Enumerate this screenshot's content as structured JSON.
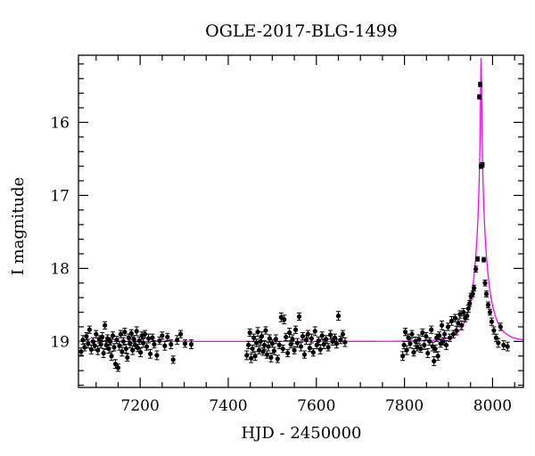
{
  "chart_data": {
    "type": "scatter",
    "title": "OGLE-2017-BLG-1499",
    "xlabel": "HJD - 2450000",
    "ylabel": "I magnitude",
    "xlim": [
      7060,
      8070
    ],
    "ylim": [
      19.63,
      15.08
    ],
    "y_inverted": true,
    "x_ticks": [
      7200,
      7400,
      7600,
      7800,
      8000
    ],
    "y_ticks": [
      16,
      17,
      18,
      19
    ],
    "grid": false,
    "marker_color": "#000000",
    "model_color": "#ff00ff",
    "model": {
      "type": "point-lens",
      "baseline_mag": 19.0,
      "t0": 7974,
      "u0": 0.028,
      "tE": 34
    },
    "series": [
      {
        "points": [
          [
            7066,
            19.14,
            0.05
          ],
          [
            7070,
            18.98,
            0.06
          ],
          [
            7074,
            19.08,
            0.05
          ],
          [
            7078,
            18.93,
            0.05
          ],
          [
            7082,
            19.03,
            0.06
          ],
          [
            7085,
            18.84,
            0.05
          ],
          [
            7089,
            19.11,
            0.06
          ],
          [
            7093,
            19.0,
            0.05
          ],
          [
            7097,
            19.06,
            0.06
          ],
          [
            7100,
            18.9,
            0.05
          ],
          [
            7104,
            19.12,
            0.06
          ],
          [
            7107,
            18.97,
            0.05
          ],
          [
            7111,
            19.04,
            0.05
          ],
          [
            7114,
            18.94,
            0.06
          ],
          [
            7117,
            19.16,
            0.06
          ],
          [
            7120,
            18.78,
            0.05
          ],
          [
            7123,
            19.05,
            0.06
          ],
          [
            7126,
            18.96,
            0.05
          ],
          [
            7129,
            19.1,
            0.06
          ],
          [
            7132,
            19.0,
            0.05
          ],
          [
            7135,
            19.2,
            0.06
          ],
          [
            7138,
            18.92,
            0.05
          ],
          [
            7141,
            19.08,
            0.05
          ],
          [
            7144,
            19.31,
            0.06
          ],
          [
            7147,
            18.98,
            0.05
          ],
          [
            7150,
            19.36,
            0.05
          ],
          [
            7153,
            19.06,
            0.06
          ],
          [
            7156,
            18.9,
            0.05
          ],
          [
            7159,
            19.14,
            0.06
          ],
          [
            7162,
            19.0,
            0.05
          ],
          [
            7165,
            18.87,
            0.05
          ],
          [
            7168,
            19.1,
            0.06
          ],
          [
            7171,
            19.22,
            0.05
          ],
          [
            7174,
            18.95,
            0.05
          ],
          [
            7177,
            19.03,
            0.06
          ],
          [
            7180,
            18.89,
            0.05
          ],
          [
            7183,
            19.12,
            0.06
          ],
          [
            7186,
            18.97,
            0.05
          ],
          [
            7189,
            19.05,
            0.05
          ],
          [
            7192,
            18.86,
            0.06
          ],
          [
            7195,
            19.09,
            0.05
          ],
          [
            7198,
            18.99,
            0.05
          ],
          [
            7201,
            19.15,
            0.06
          ],
          [
            7204,
            18.92,
            0.05
          ],
          [
            7207,
            19.02,
            0.06
          ],
          [
            7211,
            18.9,
            0.05
          ],
          [
            7215,
            19.07,
            0.05
          ],
          [
            7219,
            18.96,
            0.06
          ],
          [
            7223,
            19.17,
            0.06
          ],
          [
            7228,
            18.95,
            0.05
          ],
          [
            7232,
            19.04,
            0.05
          ],
          [
            7238,
            19.19,
            0.06
          ],
          [
            7244,
            18.99,
            0.05
          ],
          [
            7250,
            18.92,
            0.05
          ],
          [
            7256,
            19.06,
            0.06
          ],
          [
            7262,
            18.94,
            0.05
          ],
          [
            7270,
            19.04,
            0.06
          ],
          [
            7275,
            19.25,
            0.05
          ],
          [
            7284,
            18.98,
            0.06
          ],
          [
            7292,
            18.9,
            0.05
          ],
          [
            7302,
            19.03,
            0.05
          ],
          [
            7316,
            19.04,
            0.06
          ],
          [
            7442,
            19.19,
            0.06
          ],
          [
            7446,
            19.05,
            0.05
          ],
          [
            7449,
            18.88,
            0.05
          ],
          [
            7452,
            19.23,
            0.06
          ],
          [
            7455,
            19.1,
            0.05
          ],
          [
            7458,
            18.95,
            0.05
          ],
          [
            7461,
            19.2,
            0.06
          ],
          [
            7464,
            19.02,
            0.05
          ],
          [
            7467,
            18.87,
            0.06
          ],
          [
            7470,
            19.12,
            0.05
          ],
          [
            7473,
            19.0,
            0.05
          ],
          [
            7476,
            18.93,
            0.06
          ],
          [
            7479,
            19.14,
            0.05
          ],
          [
            7482,
            19.05,
            0.06
          ],
          [
            7485,
            18.85,
            0.05
          ],
          [
            7488,
            19.18,
            0.05
          ],
          [
            7491,
            19.07,
            0.06
          ],
          [
            7494,
            18.96,
            0.05
          ],
          [
            7497,
            19.22,
            0.06
          ],
          [
            7500,
            19.03,
            0.05
          ],
          [
            7504,
            19.13,
            0.05
          ],
          [
            7508,
            18.97,
            0.06
          ],
          [
            7512,
            19.24,
            0.05
          ],
          [
            7516,
            19.05,
            0.05
          ],
          [
            7520,
            18.67,
            0.06
          ],
          [
            7524,
            19.1,
            0.05
          ],
          [
            7527,
            18.7,
            0.06
          ],
          [
            7531,
            18.94,
            0.05
          ],
          [
            7535,
            19.16,
            0.05
          ],
          [
            7539,
            18.88,
            0.06
          ],
          [
            7542,
            19.04,
            0.05
          ],
          [
            7546,
            18.97,
            0.06
          ],
          [
            7550,
            19.12,
            0.05
          ],
          [
            7553,
            18.84,
            0.05
          ],
          [
            7557,
            19.02,
            0.06
          ],
          [
            7561,
            18.66,
            0.05
          ],
          [
            7565,
            19.07,
            0.06
          ],
          [
            7569,
            18.93,
            0.05
          ],
          [
            7573,
            19.18,
            0.05
          ],
          [
            7577,
            18.98,
            0.06
          ],
          [
            7581,
            18.9,
            0.05
          ],
          [
            7585,
            19.09,
            0.05
          ],
          [
            7589,
            18.96,
            0.06
          ],
          [
            7593,
            19.15,
            0.05
          ],
          [
            7597,
            18.86,
            0.06
          ],
          [
            7601,
            19.05,
            0.05
          ],
          [
            7605,
            18.99,
            0.05
          ],
          [
            7609,
            19.11,
            0.06
          ],
          [
            7613,
            18.92,
            0.05
          ],
          [
            7617,
            19.04,
            0.06
          ],
          [
            7622,
            18.97,
            0.05
          ],
          [
            7627,
            19.08,
            0.05
          ],
          [
            7632,
            18.91,
            0.06
          ],
          [
            7637,
            19.0,
            0.05
          ],
          [
            7642,
            18.95,
            0.05
          ],
          [
            7646,
            19.03,
            0.06
          ],
          [
            7650,
            18.65,
            0.06
          ],
          [
            7655,
            18.98,
            0.05
          ],
          [
            7660,
            18.9,
            0.05
          ],
          [
            7665,
            19.01,
            0.06
          ],
          [
            7796,
            19.2,
            0.06
          ],
          [
            7799,
            19.05,
            0.05
          ],
          [
            7802,
            18.87,
            0.05
          ],
          [
            7805,
            19.12,
            0.06
          ],
          [
            7809,
            18.95,
            0.05
          ],
          [
            7813,
            19.03,
            0.06
          ],
          [
            7817,
            18.9,
            0.05
          ],
          [
            7821,
            19.15,
            0.05
          ],
          [
            7825,
            19.0,
            0.06
          ],
          [
            7829,
            19.08,
            0.05
          ],
          [
            7833,
            18.97,
            0.06
          ],
          [
            7837,
            19.1,
            0.05
          ],
          [
            7841,
            18.88,
            0.05
          ],
          [
            7845,
            19.05,
            0.06
          ],
          [
            7849,
            18.93,
            0.05
          ],
          [
            7853,
            19.16,
            0.06
          ],
          [
            7857,
            19.0,
            0.05
          ],
          [
            7861,
            18.84,
            0.05
          ],
          [
            7864,
            19.07,
            0.06
          ],
          [
            7867,
            19.27,
            0.06
          ],
          [
            7870,
            19.1,
            0.05
          ],
          [
            7873,
            18.95,
            0.05
          ],
          [
            7876,
            19.2,
            0.06
          ],
          [
            7879,
            18.92,
            0.05
          ],
          [
            7882,
            19.03,
            0.05
          ],
          [
            7885,
            18.78,
            0.06
          ],
          [
            7888,
            19.0,
            0.05
          ],
          [
            7891,
            18.9,
            0.05
          ],
          [
            7895,
            19.05,
            0.06
          ],
          [
            7899,
            18.8,
            0.05
          ],
          [
            7903,
            18.95,
            0.05
          ],
          [
            7907,
            18.72,
            0.06
          ],
          [
            7911,
            18.9,
            0.05
          ],
          [
            7915,
            18.68,
            0.05
          ],
          [
            7918,
            18.85,
            0.06
          ],
          [
            7922,
            18.75,
            0.05
          ],
          [
            7926,
            18.63,
            0.05
          ],
          [
            7930,
            18.78,
            0.06
          ],
          [
            7934,
            18.6,
            0.05
          ],
          [
            7938,
            18.68,
            0.05
          ],
          [
            7942,
            18.65,
            0.05
          ],
          [
            7945,
            18.55,
            0.05
          ],
          [
            7948,
            18.48,
            0.04
          ],
          [
            7951,
            18.38,
            0.04
          ],
          [
            7955,
            18.35,
            0.04
          ],
          [
            7958,
            18.27,
            0.04
          ],
          [
            7962,
            18.01,
            0.04
          ],
          [
            7966,
            17.87,
            0.03
          ],
          [
            7970,
            15.65,
            0.03
          ],
          [
            7972,
            15.48,
            0.03
          ],
          [
            7974,
            16.6,
            0.03
          ],
          [
            7977,
            16.58,
            0.03
          ],
          [
            7980,
            17.88,
            0.03
          ],
          [
            7983,
            18.2,
            0.04
          ],
          [
            7986,
            18.35,
            0.04
          ],
          [
            7990,
            18.5,
            0.04
          ],
          [
            7994,
            18.6,
            0.04
          ],
          [
            7998,
            18.73,
            0.05
          ],
          [
            8003,
            18.85,
            0.05
          ],
          [
            8008,
            18.95,
            0.05
          ],
          [
            8013,
            19.02,
            0.06
          ],
          [
            8018,
            18.8,
            0.05
          ],
          [
            8025,
            19.05,
            0.06
          ],
          [
            8034,
            19.07,
            0.06
          ]
        ]
      }
    ]
  }
}
